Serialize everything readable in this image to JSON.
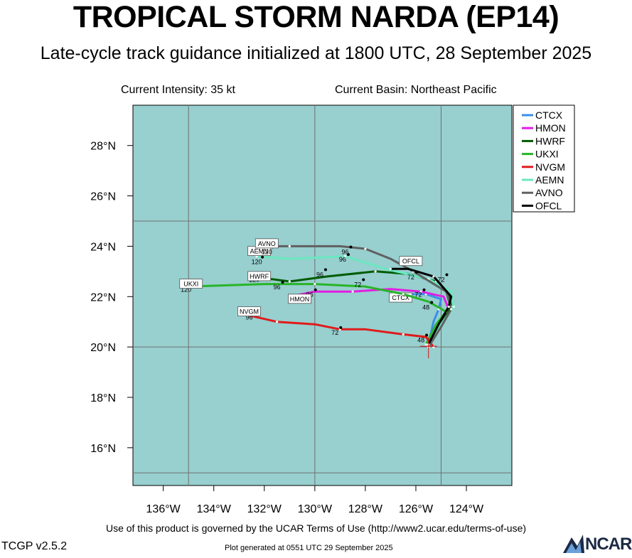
{
  "header": {
    "title": "TROPICAL STORM NARDA (EP14)",
    "subtitle": "Late-cycle track guidance initialized at 1800 UTC, 28 September 2025",
    "intensity": "Current Intensity: 35 kt",
    "basin": "Current Basin: Northeast Pacific"
  },
  "footer": {
    "terms": "Use of this product is governed by the UCAR Terms of Use (http://www2.ucar.edu/terms-of-use)",
    "version": "TCGP v2.5.2",
    "generated": "Plot generated at 0551 UTC   29 September 2025",
    "logo": "NCAR"
  },
  "colors": {
    "ocean": "#98cfcf",
    "grid": "#707070"
  },
  "chart_data": {
    "type": "line",
    "title": "TROPICAL STORM NARDA (EP14)",
    "x_axis": "longitude",
    "y_axis": "latitude",
    "xlim": [
      -137.2,
      -122.2
    ],
    "ylim": [
      14.5,
      29.6
    ],
    "xticks": [
      -136,
      -134,
      -132,
      -130,
      -128,
      -126,
      -124
    ],
    "xtick_labels": [
      "136°W",
      "134°W",
      "132°W",
      "130°W",
      "128°W",
      "126°W",
      "124°W"
    ],
    "yticks": [
      16,
      18,
      20,
      22,
      24,
      26,
      28
    ],
    "ytick_labels": [
      "16°N",
      "18°N",
      "20°N",
      "22°N",
      "24°N",
      "26°N",
      "28°N"
    ],
    "grid_lon": [
      -135,
      -130,
      -125
    ],
    "grid_lat": [
      15,
      20,
      25
    ],
    "current_position": [
      -125.5,
      20.0
    ],
    "legend_position": "top-right",
    "series": [
      {
        "name": "CTCX",
        "color": "#3a8fe8",
        "points": [
          [
            -125.5,
            20.1
          ],
          [
            -125.3,
            21.0
          ],
          [
            -125.1,
            21.5
          ],
          [
            -125.0,
            21.9
          ],
          [
            -125.6,
            22.1
          ],
          [
            -126.3,
            22.1
          ],
          [
            -126.9,
            22.1
          ]
        ],
        "hours": [
          0,
          24,
          48,
          72,
          96
        ],
        "hour_idx": [
          0,
          1,
          3,
          5,
          6
        ],
        "show_hours": [
          "96"
        ],
        "label_pos": [
          -126.6,
          21.95
        ]
      },
      {
        "name": "HMON",
        "color": "#e11ee1",
        "points": [
          [
            -125.5,
            20.1
          ],
          [
            -125.1,
            20.9
          ],
          [
            -124.7,
            21.5
          ],
          [
            -124.9,
            22.0
          ],
          [
            -125.8,
            22.2
          ],
          [
            -127.0,
            22.3
          ],
          [
            -128.5,
            22.2
          ],
          [
            -130.0,
            22.2
          ],
          [
            -131.0,
            22.0
          ]
        ],
        "show_hours": [
          "72",
          "96"
        ],
        "hour_labels": [
          [
            "72",
            -125.9,
            22.1
          ],
          [
            "96",
            -130.2,
            22.1
          ]
        ],
        "label_pos": [
          -130.6,
          21.9
        ]
      },
      {
        "name": "HWRF",
        "color": "#005c00",
        "points": [
          [
            -125.5,
            20.0
          ],
          [
            -125.0,
            20.9
          ],
          [
            -124.6,
            21.6
          ],
          [
            -124.7,
            22.1
          ],
          [
            -125.2,
            22.6
          ],
          [
            -126.3,
            22.9
          ],
          [
            -127.6,
            23.0
          ],
          [
            -129.5,
            22.8
          ],
          [
            -131.0,
            22.6
          ],
          [
            -132.5,
            22.8
          ]
        ],
        "hour_labels": [
          [
            "72",
            -125.0,
            22.7
          ],
          [
            "96",
            -129.8,
            22.9
          ],
          [
            "120",
            -132.4,
            22.7
          ]
        ],
        "label_pos": [
          -132.2,
          22.8
        ]
      },
      {
        "name": "UKXI",
        "color": "#28b428",
        "points": [
          [
            -125.6,
            20.1
          ],
          [
            -125.2,
            20.9
          ],
          [
            -124.8,
            21.4
          ],
          [
            -125.5,
            21.8
          ],
          [
            -126.5,
            22.1
          ],
          [
            -128.0,
            22.4
          ],
          [
            -130.0,
            22.5
          ],
          [
            -132.0,
            22.5
          ],
          [
            -135.0,
            22.4
          ]
        ],
        "hour_labels": [
          [
            "48",
            -125.6,
            21.6
          ],
          [
            "72",
            -128.3,
            22.5
          ],
          [
            "96",
            -131.5,
            22.4
          ],
          [
            "120",
            -135.1,
            22.3
          ]
        ],
        "label_pos": [
          -134.9,
          22.5
        ]
      },
      {
        "name": "NVGM",
        "color": "#e11a1a",
        "points": [
          [
            -125.3,
            20.0
          ],
          [
            -125.6,
            20.4
          ],
          [
            -126.5,
            20.5
          ],
          [
            -128.0,
            20.7
          ],
          [
            -129.0,
            20.7
          ],
          [
            -130.0,
            20.9
          ],
          [
            -131.5,
            21.0
          ],
          [
            -132.8,
            21.3
          ]
        ],
        "hour_labels": [
          [
            "48",
            -125.8,
            20.3
          ],
          [
            "72",
            -129.2,
            20.6
          ],
          [
            "96",
            -132.6,
            21.2
          ]
        ],
        "label_pos": [
          -132.6,
          21.4
        ]
      },
      {
        "name": "AEMN",
        "color": "#6ae8c0",
        "points": [
          [
            -125.5,
            20.0
          ],
          [
            -125.0,
            20.9
          ],
          [
            -124.5,
            21.6
          ],
          [
            -124.6,
            22.2
          ],
          [
            -125.5,
            22.7
          ],
          [
            -127.2,
            23.1
          ],
          [
            -128.8,
            23.6
          ],
          [
            -131.0,
            23.5
          ],
          [
            -132.3,
            23.6
          ]
        ],
        "hour_labels": [
          [
            "96",
            -128.9,
            23.5
          ],
          [
            "120",
            -132.3,
            23.4
          ]
        ],
        "label_pos": [
          -132.2,
          23.8
        ]
      },
      {
        "name": "AVNO",
        "color": "#606060",
        "points": [
          [
            -125.5,
            20.0
          ],
          [
            -125.0,
            20.8
          ],
          [
            -124.6,
            21.5
          ],
          [
            -124.8,
            22.2
          ],
          [
            -126.1,
            23.0
          ],
          [
            -127.0,
            23.5
          ],
          [
            -128.0,
            23.9
          ],
          [
            -129.0,
            24.0
          ],
          [
            -131.0,
            24.0
          ],
          [
            -132.0,
            24.0
          ]
        ],
        "hour_labels": [
          [
            "96",
            -128.8,
            23.8
          ],
          [
            "120",
            -131.9,
            23.8
          ]
        ],
        "label_pos": [
          -131.9,
          24.1
        ]
      },
      {
        "name": "OFCL",
        "color": "#000000",
        "points": [
          [
            -125.5,
            20.1
          ],
          [
            -125.1,
            20.9
          ],
          [
            -124.7,
            21.6
          ],
          [
            -124.6,
            22.0
          ],
          [
            -125.3,
            22.8
          ],
          [
            -126.3,
            23.1
          ],
          [
            -127.0,
            23.1
          ]
        ],
        "hour_labels": [
          [
            "72",
            -126.2,
            22.8
          ]
        ],
        "label_pos": [
          -126.2,
          23.4
        ]
      }
    ]
  }
}
